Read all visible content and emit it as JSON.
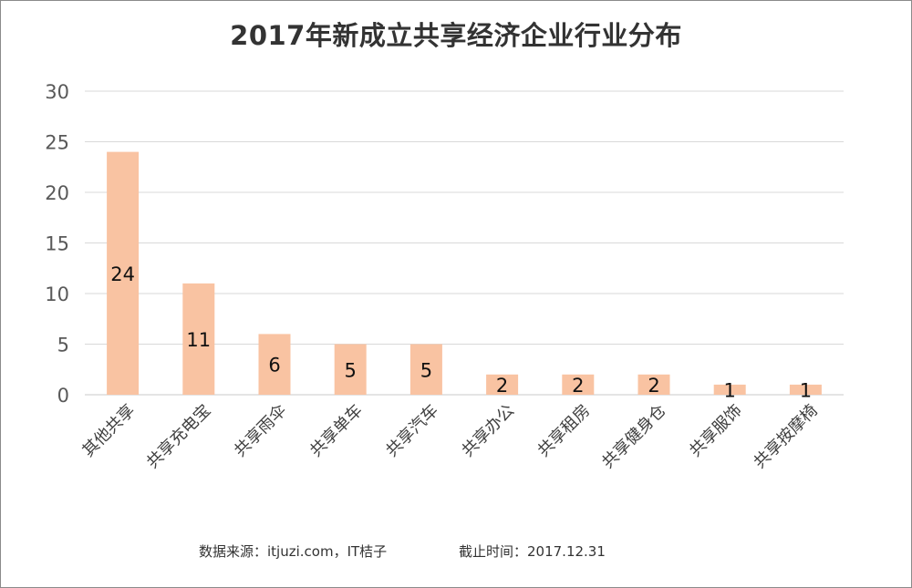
{
  "chart_data": {
    "type": "bar",
    "title": "2017年新成立共享经济企业行业分布",
    "categories": [
      "其他共享",
      "共享充电宝",
      "共享雨伞",
      "共享单车",
      "共享汽车",
      "共享办公",
      "共享租房",
      "共享健身仓",
      "共享服饰",
      "共享按摩椅"
    ],
    "values": [
      24,
      11,
      6,
      5,
      5,
      2,
      2,
      2,
      1,
      1
    ],
    "ylim": [
      0,
      30
    ],
    "yticks": [
      0,
      5,
      10,
      15,
      20,
      25,
      30
    ],
    "bar_color": "#f9c3a2",
    "grid": true,
    "legend": "none"
  },
  "footer": {
    "source": "数据来源：itjuzi.com，IT桔子",
    "cutoff": "截止时间：2017.12.31"
  }
}
